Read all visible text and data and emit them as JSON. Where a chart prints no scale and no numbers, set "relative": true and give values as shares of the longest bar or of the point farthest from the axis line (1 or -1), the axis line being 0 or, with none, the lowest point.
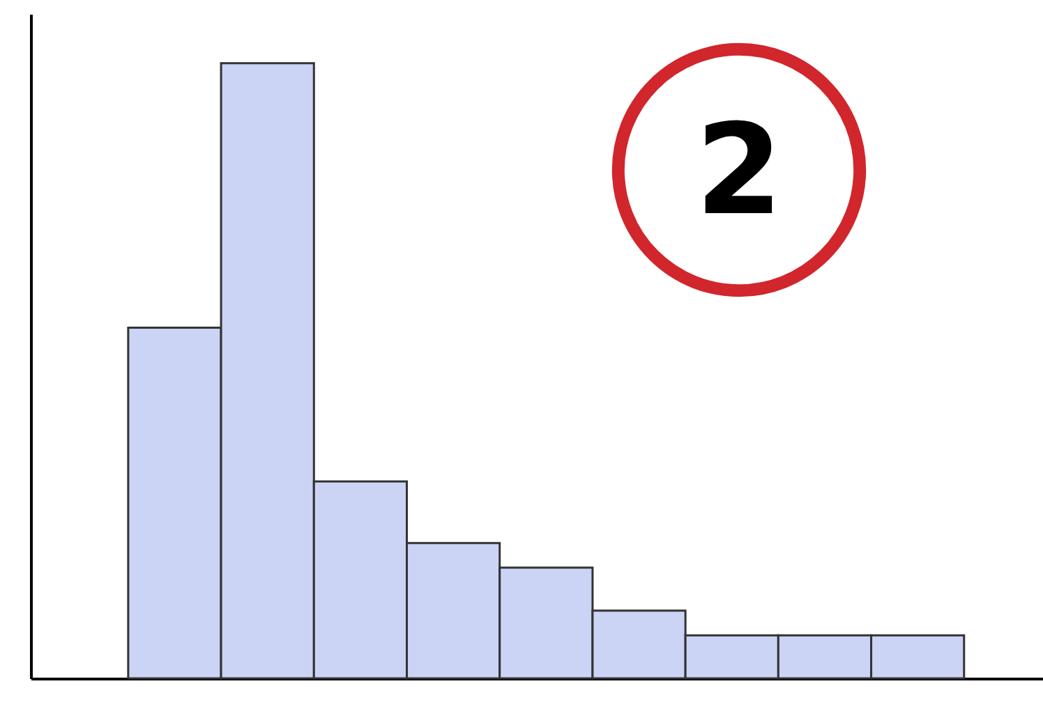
{
  "chart_data": {
    "type": "bar",
    "relative": true,
    "categories": [
      null,
      null,
      null,
      null,
      null,
      null,
      null,
      null,
      null
    ],
    "values": [
      0.57,
      1,
      0.32,
      0.22,
      0.18,
      0.11,
      0.07,
      0.07,
      0.07
    ],
    "color": "#ccd4f5",
    "annotations": [
      "2"
    ],
    "grid": false
  }
}
